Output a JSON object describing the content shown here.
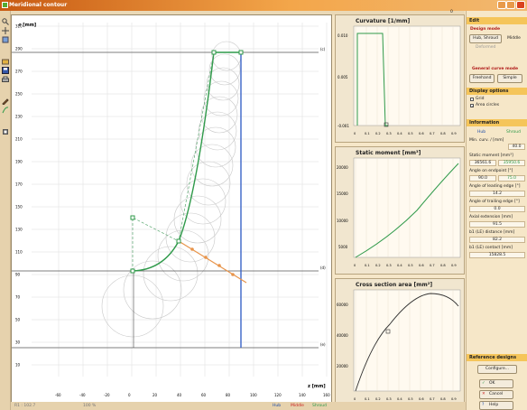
{
  "window": {
    "title": "Meridional contour"
  },
  "top_marker": "0",
  "main_plot": {
    "axis_y_label": "r [mm]",
    "axis_x_label": "z [mm]",
    "y_ticks": [
      "310",
      "290",
      "270",
      "250",
      "230",
      "210",
      "190",
      "170",
      "150",
      "130",
      "110",
      "90",
      "70",
      "50",
      "30",
      "10"
    ],
    "x_ticks": [
      "-60",
      "-40",
      "-20",
      "0",
      "20",
      "40",
      "60",
      "80",
      "100",
      "120",
      "140",
      "160"
    ],
    "line_labels": [
      "(c)",
      "(d)",
      "(e)"
    ]
  },
  "charts": {
    "curvature": {
      "title": "Curvature [1/mm]",
      "y_ticks": [
        "0.010",
        "0.005",
        "-0.001"
      ],
      "x_ticks": [
        "0",
        "0.1",
        "0.2",
        "0.3",
        "0.4",
        "0.5",
        "0.6",
        "0.7",
        "0.8",
        "0.9"
      ]
    },
    "static_moment": {
      "title": "Static moment [mm³]",
      "y_ticks": [
        "20000",
        "15000",
        "10000",
        "5000"
      ],
      "x_ticks": [
        "0",
        "0.1",
        "0.2",
        "0.3",
        "0.4",
        "0.5",
        "0.6",
        "0.7",
        "0.8",
        "0.9"
      ]
    },
    "cross_section": {
      "title": "Cross section area [mm²]",
      "y_ticks": [
        "60000",
        "40000",
        "20000"
      ],
      "x_ticks": [
        "0",
        "0.1",
        "0.2",
        "0.3",
        "0.4",
        "0.5",
        "0.6",
        "0.7",
        "0.8",
        "0.9"
      ]
    }
  },
  "right_panel": {
    "edit_title": "Edit",
    "design_mode_title": "Design mode",
    "design_buttons": [
      "Hub, Shroud",
      "Middle"
    ],
    "design_extra": "Deformed",
    "general_curve_title": "General curve mode",
    "curve_buttons": [
      "Freehand",
      "Simple"
    ],
    "display_title": "Display options",
    "display_opts": [
      "Grid",
      "Area circles"
    ],
    "info_title": "Information",
    "info_cols": [
      "Hub",
      "Shroud"
    ],
    "min_curv_label": "Min. curv. / [mm]",
    "min_curv_val": "40.0",
    "static_moment_label": "Static moment [mm³]",
    "static_moment_vals": [
      "36561.6",
      "35950.6"
    ],
    "angle_endpoint_label": "Angle on endpoint [°]",
    "angle_endpoint_vals": [
      "90.0",
      "75.0"
    ],
    "angle_leading_label": "Angle of leading edge [°]",
    "angle_leading_val": "14.2",
    "angle_trailing_label": "Angle of trailing edge [°]",
    "angle_trailing_val": "0.0",
    "axial_ext_label": "Axial extension [mm]",
    "axial_ext_val": "91.5",
    "le_distance_label": "b1 (LE) distance [mm]",
    "le_distance_val": "82.2",
    "le_contact_label": "b1 (LE) contact [mm]",
    "le_contact_val": "15828.5",
    "ref_title": "Reference designs",
    "configure_label": "Configure...",
    "ok_label": "OK",
    "cancel_label": "Cancel",
    "help_label": "Help"
  },
  "status": {
    "left": "R1 : 102.7",
    "mid": "100 %",
    "hub": "Hub",
    "middle": "Middle",
    "shroud": "Shroud"
  },
  "colors": {
    "hub": "#2f9a4a",
    "blue_line": "#3a63c7",
    "orange": "#e8944a",
    "header": "#f5c55a"
  }
}
